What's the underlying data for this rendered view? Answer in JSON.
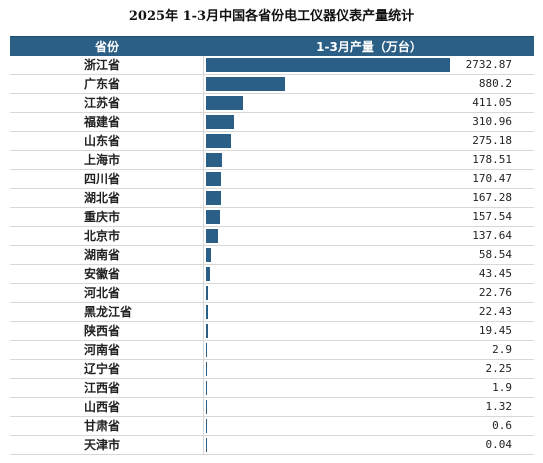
{
  "chart_data": {
    "type": "bar",
    "title": "2025年 1-3月中国各省份电工仪器仪表产量统计",
    "column_headers": [
      "省份",
      "1-3月产量（万台）"
    ],
    "categories": [
      "浙江省",
      "广东省",
      "江苏省",
      "福建省",
      "山东省",
      "上海市",
      "四川省",
      "湖北省",
      "重庆市",
      "北京市",
      "湖南省",
      "安徽省",
      "河北省",
      "黑龙江省",
      "陕西省",
      "河南省",
      "辽宁省",
      "江西省",
      "山西省",
      "甘肃省",
      "天津市"
    ],
    "values": [
      2732.87,
      880.2,
      411.05,
      310.96,
      275.18,
      178.51,
      170.47,
      167.28,
      157.54,
      137.64,
      58.54,
      43.45,
      22.76,
      22.43,
      19.45,
      2.9,
      2.25,
      1.9,
      1.32,
      0.6,
      0.04
    ],
    "value_labels": [
      "2732.87",
      "880.2",
      "411.05",
      "310.96",
      "275.18",
      "178.51",
      "170.47",
      "167.28",
      "157.54",
      "137.64",
      "58.54",
      "43.45",
      "22.76",
      "22.43",
      "19.45",
      "2.9",
      "2.25",
      "1.9",
      "1.32",
      "0.6",
      "0.04"
    ],
    "bar_color": "#2a5f87",
    "header_color": "#2b5f86"
  }
}
